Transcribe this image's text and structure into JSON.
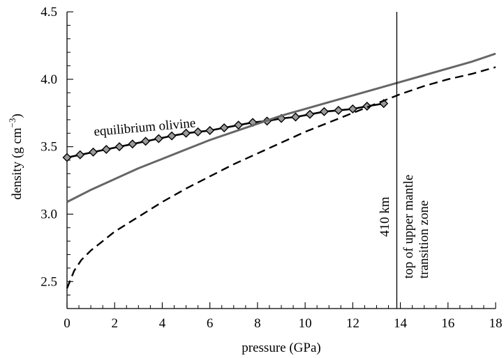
{
  "chart_data": {
    "type": "line",
    "xlabel": "pressure (GPa)",
    "ylabel": "density (g cm−3)",
    "ylabel_parts": {
      "main": "density (g cm",
      "superscript": "−3",
      "close": ")"
    },
    "xlim": [
      0,
      18
    ],
    "ylim": [
      2.3,
      4.5
    ],
    "x_ticks": [
      0,
      2,
      4,
      6,
      8,
      10,
      12,
      14,
      16,
      18
    ],
    "y_ticks": [
      2.5,
      3.0,
      3.5,
      4.0,
      4.5
    ],
    "y_tick_labels": [
      "2.5",
      "3.0",
      "3.5",
      "4.0",
      "4.5"
    ],
    "grid": false,
    "series": [
      {
        "name": "equilibrium olivine",
        "style": "solid-black-diamonds",
        "color": "#000000",
        "marker_fill": "#9a9a9a",
        "x": [
          0,
          0.55,
          1.1,
          1.65,
          2.2,
          2.75,
          3.3,
          3.85,
          4.4,
          5.0,
          5.5,
          6.0,
          6.6,
          7.2,
          7.8,
          8.4,
          9.0,
          9.6,
          10.2,
          10.8,
          11.4,
          12.0,
          12.6,
          13.3
        ],
        "y": [
          3.42,
          3.44,
          3.46,
          3.48,
          3.5,
          3.52,
          3.54,
          3.56,
          3.58,
          3.6,
          3.61,
          3.62,
          3.64,
          3.66,
          3.68,
          3.69,
          3.71,
          3.72,
          3.74,
          3.76,
          3.77,
          3.78,
          3.8,
          3.82
        ]
      },
      {
        "style": "solid-gray",
        "color": "#666666",
        "x": [
          0,
          1,
          2,
          3,
          4,
          5,
          6,
          7,
          8,
          9,
          10,
          11,
          12,
          13,
          14,
          15,
          16,
          17,
          18
        ],
        "y": [
          3.09,
          3.18,
          3.26,
          3.34,
          3.41,
          3.48,
          3.55,
          3.61,
          3.67,
          3.73,
          3.78,
          3.83,
          3.88,
          3.93,
          3.98,
          4.03,
          4.08,
          4.13,
          4.19
        ]
      },
      {
        "style": "dashed-black",
        "color": "#000000",
        "x": [
          0,
          0.3,
          0.6,
          1.0,
          1.5,
          2,
          3,
          4,
          5,
          6,
          7,
          8,
          9,
          10,
          11,
          12,
          13,
          14,
          15,
          16,
          17,
          18
        ],
        "y": [
          2.45,
          2.58,
          2.66,
          2.73,
          2.8,
          2.87,
          2.98,
          3.09,
          3.19,
          3.28,
          3.37,
          3.45,
          3.53,
          3.61,
          3.68,
          3.75,
          3.82,
          3.89,
          3.95,
          4.0,
          4.04,
          4.09
        ]
      }
    ],
    "vertical_line": {
      "x": 13.85
    },
    "annotations": {
      "series_label": "equilibrium olivine",
      "line_label": "410 km",
      "zone_label_line1": "top of upper mantle",
      "zone_label_line2": "transition zone"
    }
  }
}
